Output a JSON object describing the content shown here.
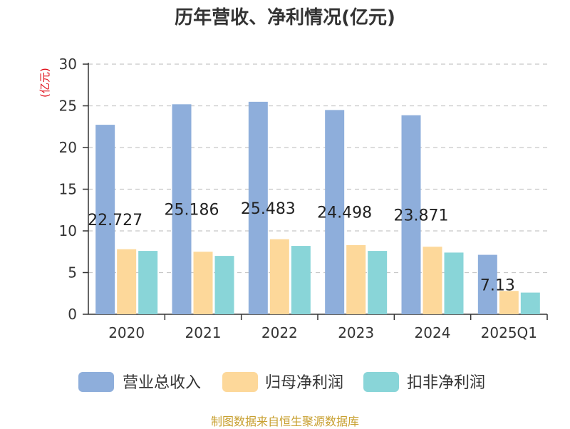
{
  "page": {
    "title": "历年营收、净利情况(亿元)",
    "source": "制图数据来自恒生聚源数据库"
  },
  "chart_data": {
    "type": "bar",
    "title": "历年营收、净利情况(亿元)",
    "ylabel": "(亿元)",
    "xlabel": "",
    "ylim": [
      0,
      30
    ],
    "yticks": [
      0,
      5,
      10,
      15,
      20,
      25,
      30
    ],
    "grid": true,
    "legend_position": "bottom",
    "categories": [
      "2020",
      "2021",
      "2022",
      "2023",
      "2024",
      "2025Q1"
    ],
    "series": [
      {
        "name": "营业总收入",
        "color": "#8eaedb",
        "values": [
          22.727,
          25.186,
          25.483,
          24.498,
          23.871,
          7.13
        ],
        "data_labels": [
          "22.727",
          "25.186",
          "25.483",
          "24.498",
          "23.871",
          "7.13"
        ]
      },
      {
        "name": "归母净利润",
        "color": "#fdd89a",
        "values": [
          7.8,
          7.5,
          9.0,
          8.3,
          8.1,
          2.8
        ]
      },
      {
        "name": "扣非净利润",
        "color": "#89d5d8",
        "values": [
          7.6,
          7.0,
          8.2,
          7.6,
          7.4,
          2.6
        ]
      }
    ]
  }
}
